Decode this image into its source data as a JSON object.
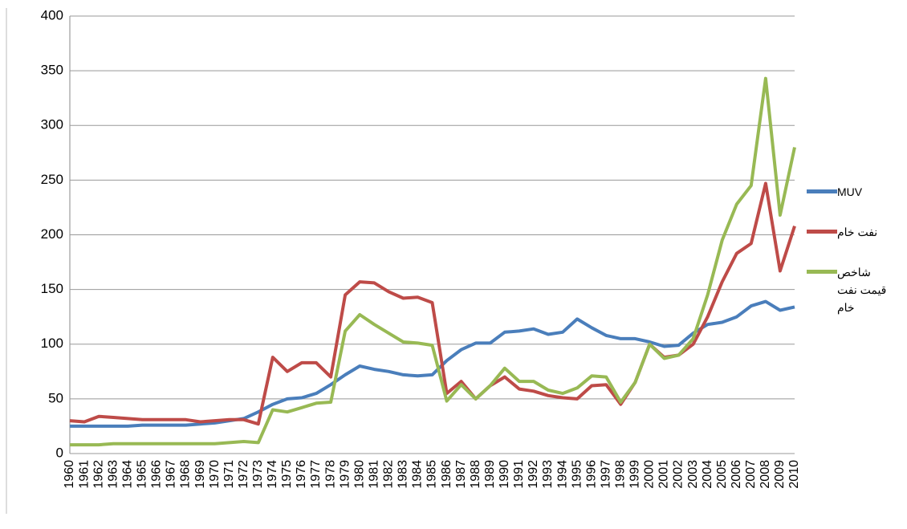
{
  "chart_data": {
    "type": "line",
    "categories": [
      "1960",
      "1961",
      "1962",
      "1963",
      "1964",
      "1965",
      "1966",
      "1967",
      "1968",
      "1969",
      "1970",
      "1971",
      "1972",
      "1973",
      "1974",
      "1975",
      "1976",
      "1977",
      "1978",
      "1979",
      "1980",
      "1981",
      "1982",
      "1983",
      "1984",
      "1985",
      "1986",
      "1987",
      "1988",
      "1989",
      "1990",
      "1991",
      "1992",
      "1993",
      "1994",
      "1995",
      "1996",
      "1997",
      "1998",
      "1999",
      "2000",
      "2001",
      "2002",
      "2003",
      "2004",
      "2005",
      "2006",
      "2007",
      "2008",
      "2009",
      "2010"
    ],
    "series": [
      {
        "name": "MUV",
        "color": "#4a7ebb",
        "values": [
          25,
          25,
          25,
          25,
          25,
          26,
          26,
          26,
          26,
          27,
          28,
          30,
          32,
          38,
          45,
          50,
          51,
          55,
          63,
          72,
          80,
          77,
          75,
          72,
          71,
          72,
          85,
          95,
          101,
          101,
          111,
          112,
          114,
          109,
          111,
          123,
          115,
          108,
          105,
          105,
          102,
          98,
          99,
          110,
          118,
          120,
          125,
          135,
          139,
          131,
          134
        ]
      },
      {
        "name": "نفت خام",
        "color": "#be4b48",
        "values": [
          30,
          29,
          34,
          33,
          32,
          31,
          31,
          31,
          31,
          29,
          30,
          31,
          31,
          27,
          88,
          75,
          83,
          83,
          70,
          145,
          157,
          156,
          148,
          142,
          143,
          138,
          55,
          66,
          50,
          62,
          70,
          59,
          57,
          53,
          51,
          50,
          62,
          63,
          45,
          65,
          100,
          88,
          90,
          100,
          125,
          157,
          183,
          192,
          247,
          167,
          208
        ]
      },
      {
        "name": "شاخص قیمت نفت خام",
        "color": "#98b954",
        "values": [
          8,
          8,
          8,
          9,
          9,
          9,
          9,
          9,
          9,
          9,
          9,
          10,
          11,
          10,
          40,
          38,
          42,
          46,
          47,
          112,
          127,
          118,
          110,
          102,
          101,
          99,
          48,
          63,
          50,
          62,
          78,
          66,
          66,
          58,
          55,
          60,
          71,
          70,
          47,
          65,
          100,
          87,
          90,
          105,
          145,
          195,
          228,
          245,
          343,
          218,
          280
        ]
      }
    ],
    "ylim": [
      0,
      400
    ],
    "yticks": [
      0,
      50,
      100,
      150,
      200,
      250,
      300,
      350,
      400
    ],
    "grid": true
  }
}
